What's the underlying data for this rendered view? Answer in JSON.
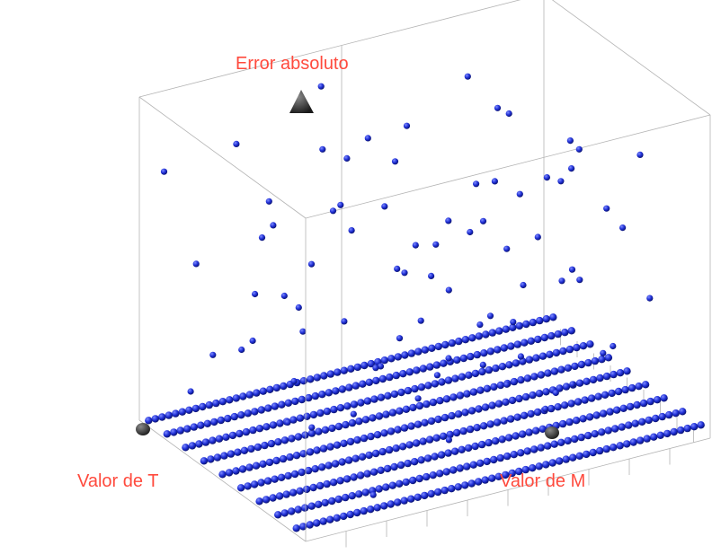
{
  "chart_data": {
    "type": "scatter",
    "projection": "3d",
    "xlabel": "Valor de T",
    "ylabel": "Valor de M",
    "zlabel": "Error absoluto",
    "grid": false,
    "box": true,
    "colors": {
      "points": "#1f2fd6",
      "point_highlight": "#7f8cff",
      "point_shadow": "#0a126e",
      "labels": "#ff4a3d",
      "box": "#b4b4b4",
      "axis_markers": "#333333"
    },
    "dense_floor_rows": {
      "t_values": [
        1,
        2,
        3,
        4,
        5,
        6,
        7,
        8,
        9
      ],
      "m_range": [
        0,
        1
      ],
      "z_value": 0
    },
    "scattered_points": [
      [
        0.1,
        0.02,
        0.8
      ],
      [
        0.15,
        0.12,
        0.22
      ],
      [
        0.22,
        0.05,
        0.55
      ],
      [
        0.3,
        0.18,
        0.62
      ],
      [
        0.35,
        0.25,
        0.4
      ],
      [
        0.42,
        0.08,
        0.35
      ],
      [
        0.48,
        0.3,
        0.75
      ],
      [
        0.5,
        0.45,
        0.5
      ],
      [
        0.55,
        0.2,
        0.12
      ],
      [
        0.6,
        0.35,
        0.28
      ],
      [
        0.65,
        0.55,
        0.65
      ],
      [
        0.72,
        0.4,
        0.45
      ],
      [
        0.75,
        0.6,
        0.2
      ],
      [
        0.8,
        0.15,
        0.9
      ],
      [
        0.85,
        0.5,
        0.33
      ],
      [
        0.9,
        0.7,
        0.58
      ],
      [
        0.12,
        0.4,
        0.95
      ],
      [
        0.2,
        0.55,
        0.7
      ],
      [
        0.28,
        0.65,
        0.3
      ],
      [
        0.33,
        0.75,
        0.85
      ],
      [
        0.4,
        0.6,
        0.15
      ],
      [
        0.45,
        0.8,
        0.48
      ],
      [
        0.52,
        0.7,
        0.92
      ],
      [
        0.58,
        0.85,
        0.38
      ],
      [
        0.62,
        0.9,
        0.6
      ],
      [
        0.68,
        0.75,
        0.1
      ],
      [
        0.7,
        0.95,
        0.78
      ],
      [
        0.78,
        0.85,
        0.25
      ],
      [
        0.82,
        0.3,
        0.68
      ],
      [
        0.88,
        0.9,
        0.42
      ],
      [
        0.92,
        0.2,
        0.05
      ],
      [
        0.95,
        0.55,
        0.88
      ],
      [
        0.05,
        0.3,
        0.6
      ],
      [
        0.08,
        0.7,
        0.35
      ],
      [
        0.18,
        0.85,
        0.1
      ],
      [
        0.25,
        0.35,
        0.82
      ],
      [
        0.38,
        0.45,
        0.66
      ],
      [
        0.44,
        0.15,
        0.72
      ],
      [
        0.56,
        0.05,
        0.44
      ],
      [
        0.64,
        0.25,
        0.97
      ],
      [
        0.74,
        0.1,
        0.52
      ],
      [
        0.86,
        0.65,
        0.15
      ],
      [
        0.96,
        0.8,
        0.7
      ],
      [
        0.02,
        0.9,
        0.25
      ],
      [
        0.14,
        0.95,
        0.5
      ],
      [
        0.26,
        0.02,
        0.18
      ],
      [
        0.36,
        0.92,
        0.62
      ],
      [
        0.46,
        0.5,
        0.08
      ],
      [
        0.54,
        0.62,
        0.3
      ],
      [
        0.66,
        0.45,
        0.55
      ],
      [
        0.76,
        0.52,
        0.85
      ],
      [
        0.84,
        0.42,
        0.12
      ],
      [
        0.94,
        0.35,
        0.38
      ],
      [
        0.06,
        0.5,
        0.45
      ],
      [
        0.16,
        0.22,
        0.38
      ],
      [
        0.24,
        0.78,
        0.58
      ],
      [
        0.34,
        0.1,
        0.95
      ],
      [
        0.54,
        0.82,
        0.68
      ],
      [
        0.64,
        0.68,
        0.22
      ],
      [
        0.74,
        0.28,
        0.35
      ],
      [
        0.84,
        0.72,
        0.95
      ],
      [
        0.94,
        0.12,
        0.62
      ],
      [
        0.1,
        0.62,
        0.75
      ],
      [
        0.3,
        0.52,
        0.2
      ],
      [
        0.5,
        0.22,
        0.6
      ],
      [
        0.7,
        0.58,
        0.4
      ],
      [
        0.9,
        0.48,
        0.8
      ],
      [
        0.2,
        0.3,
        0.1
      ],
      [
        0.4,
        0.88,
        0.3
      ],
      [
        0.6,
        0.12,
        0.18
      ],
      [
        0.8,
        0.62,
        0.52
      ],
      [
        0.15,
        0.75,
        0.88
      ],
      [
        0.45,
        0.38,
        0.92
      ],
      [
        0.65,
        0.82,
        0.82
      ],
      [
        0.85,
        0.18,
        0.28
      ],
      [
        0.25,
        0.58,
        0.45
      ],
      [
        0.55,
        0.92,
        0.12
      ],
      [
        0.75,
        0.05,
        0.65
      ],
      [
        0.95,
        0.68,
        0.25
      ],
      [
        0.35,
        0.62,
        0.55
      ]
    ]
  }
}
